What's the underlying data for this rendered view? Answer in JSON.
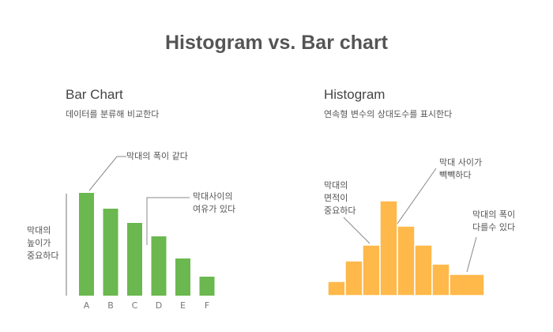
{
  "title": "Histogram vs. Bar chart",
  "bar_panel": {
    "title": "Bar Chart",
    "subtitle": "데이터를 분류해 비교한다",
    "annotations": {
      "same_width": "막대의 폭이 같다",
      "gap": "막대사이의\n여유가 있다",
      "height": "막대의\n높이가\n중요하다"
    }
  },
  "hist_panel": {
    "title": "Histogram",
    "subtitle": "연속형 변수의 상대도수를 표시한다",
    "annotations": {
      "area": "막대의\n면적이\n중요하다",
      "tight": "막대 사이가\n빽빽하다",
      "diff_width": "막대의 폭이\n다를수 있다"
    }
  },
  "chart_data": [
    {
      "type": "bar",
      "categories": [
        "A",
        "B",
        "C",
        "D",
        "E",
        "F"
      ],
      "values": [
        130,
        110,
        92,
        75,
        47,
        24
      ],
      "color": "#6ab84f"
    },
    {
      "type": "bar",
      "bins": [
        [
          0,
          1
        ],
        [
          1,
          2
        ],
        [
          2,
          3
        ],
        [
          3,
          4
        ],
        [
          4,
          5
        ],
        [
          5,
          6
        ],
        [
          6,
          7
        ],
        [
          7,
          9
        ]
      ],
      "values": [
        18,
        44,
        64,
        120,
        88,
        64,
        40,
        27
      ],
      "color": "#ffb84a"
    }
  ]
}
